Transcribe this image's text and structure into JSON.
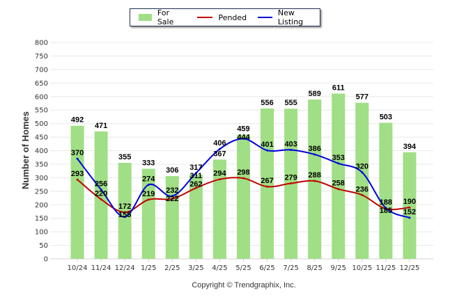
{
  "chart_data": {
    "type": "bar",
    "title": "",
    "xlabel": "",
    "ylabel": "Number of Homes",
    "ylim": [
      0,
      800
    ],
    "yticks": [
      0,
      50,
      100,
      150,
      200,
      250,
      300,
      350,
      400,
      450,
      500,
      550,
      600,
      650,
      700,
      750,
      800
    ],
    "grid": true,
    "legend_position": "top-center",
    "categories": [
      "10/24",
      "11/24",
      "12/24",
      "1/25",
      "2/25",
      "3/25",
      "4/25",
      "5/25",
      "6/25",
      "7/25",
      "8/25",
      "9/25",
      "10/25",
      "11/25",
      "12/25"
    ],
    "series": [
      {
        "name": "For Sale",
        "kind": "bar",
        "color": "#a0df85",
        "values": [
          492,
          471,
          355,
          333,
          306,
          311,
          367,
          459,
          556,
          555,
          589,
          611,
          577,
          503,
          394
        ]
      },
      {
        "name": "Pended",
        "kind": "line",
        "color": "#c00000",
        "values": [
          293,
          220,
          172,
          219,
          222,
          262,
          294,
          298,
          267,
          279,
          288,
          258,
          236,
          185,
          190
        ]
      },
      {
        "name": "New Listing",
        "kind": "line",
        "color": "#0000e0",
        "values": [
          370,
          256,
          155,
          274,
          232,
          317,
          406,
          444,
          401,
          403,
          386,
          353,
          320,
          188,
          152
        ]
      }
    ],
    "footer": "Copyright © Trendgraphix, Inc."
  }
}
